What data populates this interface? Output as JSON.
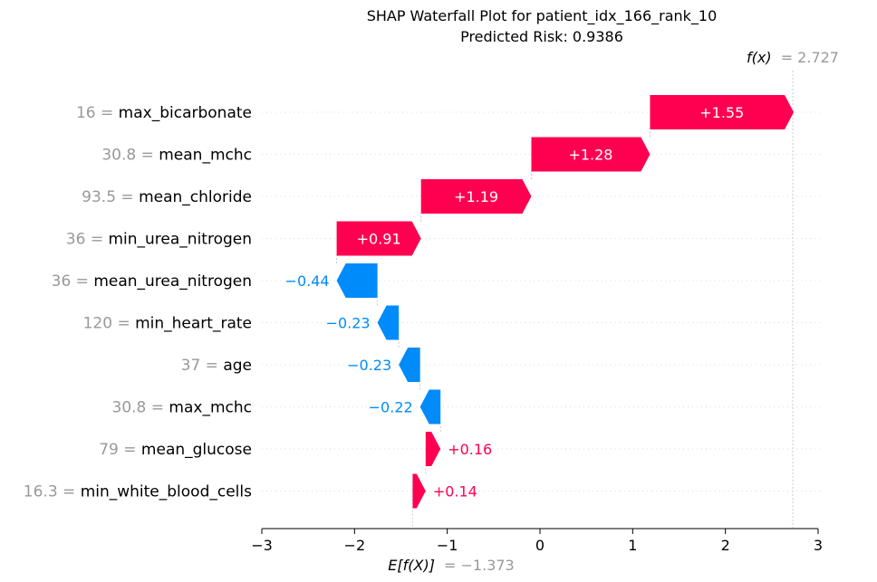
{
  "chart_data": {
    "type": "waterfall",
    "title_line1": "SHAP Waterfall Plot for patient_idx_166_rank_10",
    "title_line2": "Predicted Risk: 0.9386",
    "base_value": -1.373,
    "base_label_prefix": "E[f(X)]",
    "base_label_value": "= −1.373",
    "output_value": 2.727,
    "output_label_prefix": "f(x)",
    "output_label_value": "= 2.727",
    "xlim": [
      -3,
      3
    ],
    "x_ticks": [
      -3,
      -2,
      -1,
      0,
      1,
      2,
      3
    ],
    "x_tick_labels": [
      "−3",
      "−2",
      "−1",
      "0",
      "1",
      "2",
      "3"
    ],
    "colors": {
      "positive": "#ff0051",
      "negative": "#008bfb",
      "muted": "#999999",
      "text": "#000000"
    },
    "features": [
      {
        "value_text": "16 =",
        "name": "max_bicarbonate",
        "shap": 1.55,
        "label": "+1.55"
      },
      {
        "value_text": "30.8 =",
        "name": "mean_mchc",
        "shap": 1.28,
        "label": "+1.28"
      },
      {
        "value_text": "93.5 =",
        "name": "mean_chloride",
        "shap": 1.19,
        "label": "+1.19"
      },
      {
        "value_text": "36 =",
        "name": "min_urea_nitrogen",
        "shap": 0.91,
        "label": "+0.91"
      },
      {
        "value_text": "36 =",
        "name": "mean_urea_nitrogen",
        "shap": -0.44,
        "label": "−0.44"
      },
      {
        "value_text": "120 =",
        "name": "min_heart_rate",
        "shap": -0.23,
        "label": "−0.23"
      },
      {
        "value_text": "37 =",
        "name": "age",
        "shap": -0.23,
        "label": "−0.23"
      },
      {
        "value_text": "30.8 =",
        "name": "max_mchc",
        "shap": -0.22,
        "label": "−0.22"
      },
      {
        "value_text": "79 =",
        "name": "mean_glucose",
        "shap": 0.16,
        "label": "+0.16"
      },
      {
        "value_text": "16.3 =",
        "name": "min_white_blood_cells",
        "shap": 0.14,
        "label": "+0.14"
      }
    ]
  }
}
